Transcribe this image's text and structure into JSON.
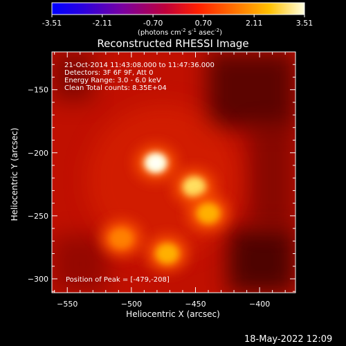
{
  "chart_data": {
    "type": "heatmap",
    "title": "Reconstructed RHESSI Image",
    "xlabel": "Heliocentric X (arcsec)",
    "ylabel": "Heliocentric Y (arcsec)",
    "xlim": [
      -562,
      -372
    ],
    "ylim": [
      -311,
      -120
    ],
    "xticks": [
      -550,
      -500,
      -450,
      -400
    ],
    "yticks": [
      -150,
      -200,
      -250,
      -300
    ],
    "colorbar": {
      "min": -3.51,
      "max": 3.51,
      "ticks": [
        "-3.51",
        "-2.11",
        "-0.70",
        "0.70",
        "2.11",
        "3.51"
      ],
      "units_text": "(photons cm",
      "units_exp1": "-2",
      "units_mid": " s",
      "units_exp2": "-1",
      "units_mid2": " asec",
      "units_exp3": "-2",
      "units_end": ")",
      "colormap": "hot"
    },
    "info_lines": [
      "21-Oct-2014 11:43:08.000 to 11:47:36.000",
      "Detectors: 3F 6F 9F, Att 0",
      "Energy Range: 3.0 - 6.0 keV",
      "Clean     Total counts: 8.35E+04"
    ],
    "peak_text": "Position of Peak = [-479,-208]",
    "sources": [
      {
        "x": -481,
        "y": -208,
        "value": 3.51
      },
      {
        "x": -451,
        "y": -227,
        "value": 2.8
      },
      {
        "x": -440,
        "y": -248,
        "value": 2.4
      },
      {
        "x": -472,
        "y": -280,
        "value": 2.6
      },
      {
        "x": -508,
        "y": -268,
        "value": 1.9
      }
    ]
  },
  "footer": {
    "timestamp": "18-May-2022 12:09"
  }
}
